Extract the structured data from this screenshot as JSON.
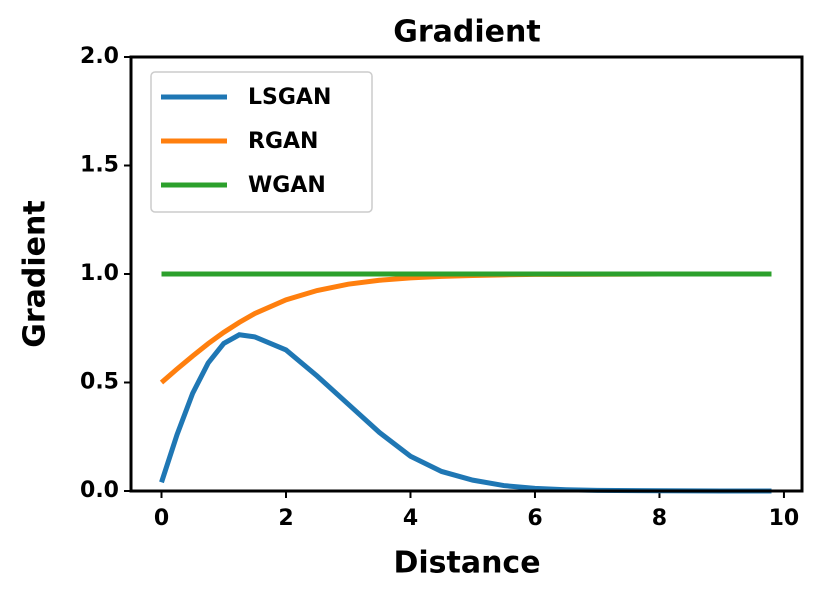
{
  "chart_data": {
    "type": "line",
    "title": "Gradient",
    "x_label": "Distance",
    "y_label": "Gradient",
    "x": [
      0,
      0.25,
      0.5,
      0.75,
      1,
      1.25,
      1.5,
      2,
      2.5,
      3,
      3.5,
      4,
      4.5,
      5,
      5.5,
      6,
      6.5,
      7,
      8,
      9,
      9.8
    ],
    "series": [
      {
        "name": "LSGAN",
        "color": "#1f77b4",
        "values": [
          0.04,
          0.26,
          0.45,
          0.59,
          0.68,
          0.72,
          0.71,
          0.65,
          0.53,
          0.4,
          0.27,
          0.16,
          0.09,
          0.05,
          0.025,
          0.012,
          0.006,
          0.003,
          0.001,
          0,
          0
        ]
      },
      {
        "name": "RGAN",
        "color": "#ff7f0e",
        "values": [
          0.5,
          0.562,
          0.622,
          0.679,
          0.731,
          0.777,
          0.818,
          0.881,
          0.924,
          0.953,
          0.971,
          0.982,
          0.989,
          0.993,
          0.996,
          0.998,
          0.998,
          0.999,
          1.0,
          1.0,
          1.0
        ]
      },
      {
        "name": "WGAN",
        "color": "#2ca02c",
        "values": [
          1,
          1,
          1,
          1,
          1,
          1,
          1,
          1,
          1,
          1,
          1,
          1,
          1,
          1,
          1,
          1,
          1,
          1,
          1,
          1,
          1
        ]
      }
    ],
    "xlim": [
      -0.49,
      10.29
    ],
    "ylim": [
      0,
      2
    ],
    "xticks": [
      0,
      2,
      4,
      6,
      8,
      10
    ],
    "yticks": [
      {
        "value": 0,
        "label": "0.0"
      },
      {
        "value": 0.5,
        "label": "0.5"
      },
      {
        "value": 1,
        "label": "1.0"
      },
      {
        "value": 1.5,
        "label": "1.5"
      },
      {
        "value": 2,
        "label": "2.0"
      }
    ],
    "legend": "upper left"
  }
}
